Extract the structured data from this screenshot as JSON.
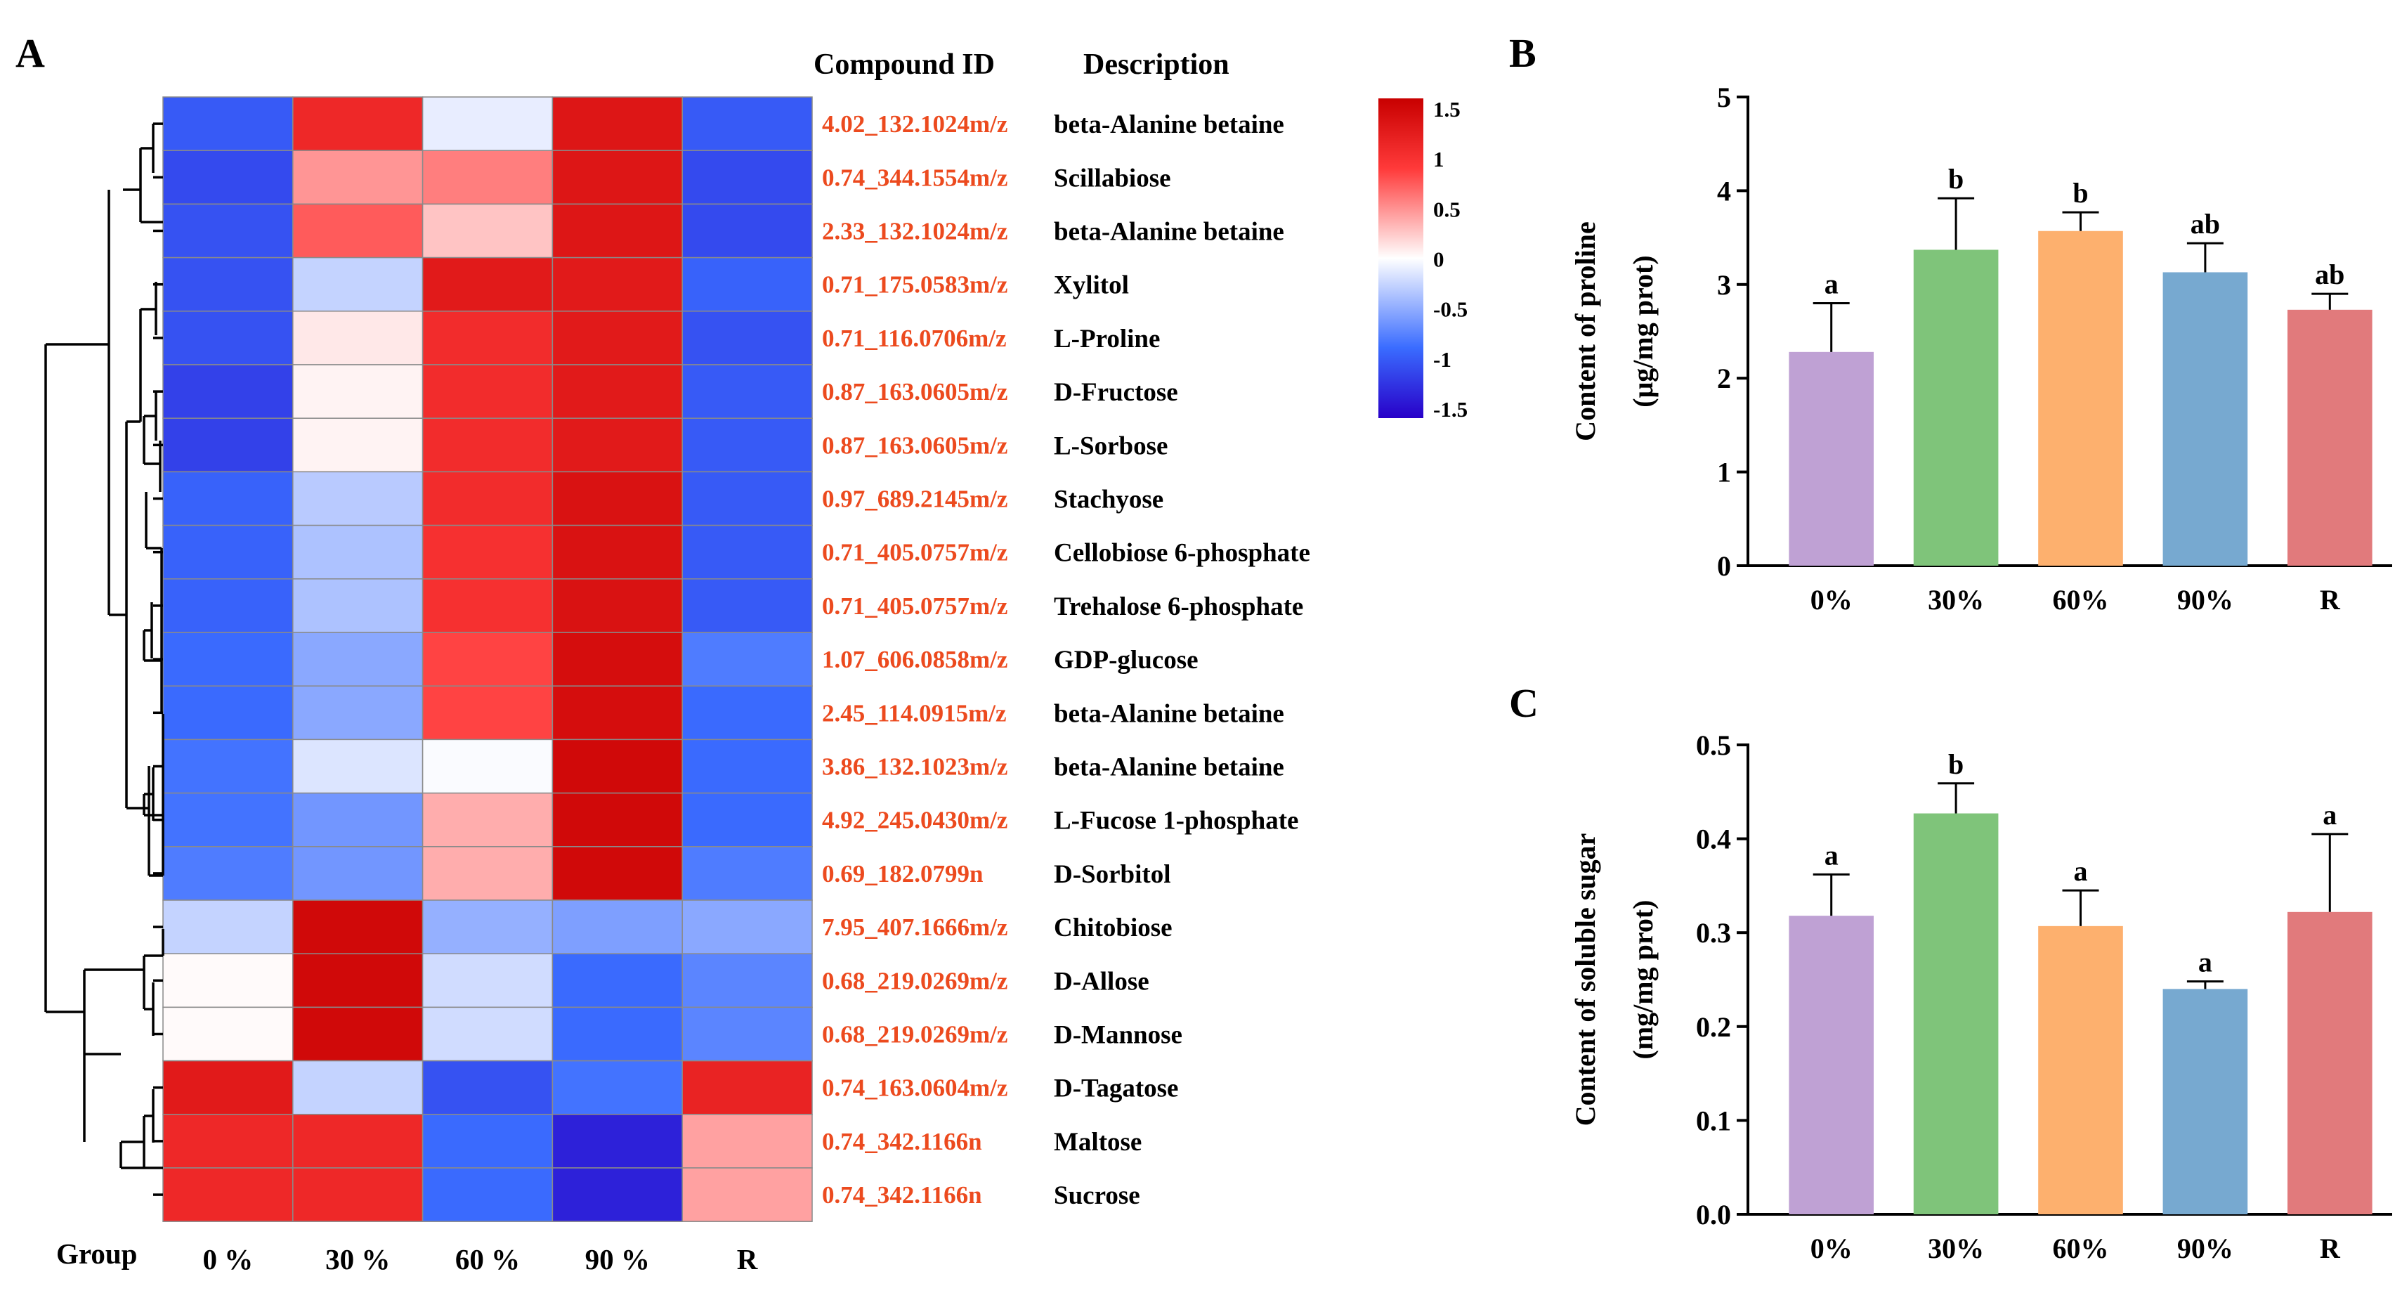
{
  "panels": {
    "a": "A",
    "b": "B",
    "c": "C"
  },
  "colors": {
    "low": "#2800c8",
    "mid": "#ffffff",
    "high": "#c80000",
    "bar_fills": [
      "#bfa1d4",
      "#7fc47a",
      "#fdb06e",
      "#77a9d0",
      "#e17a7c"
    ]
  },
  "chart_data": [
    {
      "type": "heatmap",
      "title": "",
      "header_id": "Compound ID",
      "header_desc": "Description",
      "group_label": "Group",
      "columns": [
        "0 %",
        "30 %",
        "60 %",
        "90 %",
        "R"
      ],
      "rows": [
        {
          "id": "4.02_132.1024m/z",
          "desc": "beta-Alanine betaine",
          "values": [
            -0.95,
            1.05,
            -0.1,
            1.25,
            -0.95
          ]
        },
        {
          "id": "0.74_344.1554m/z",
          "desc": "Scillabiose",
          "values": [
            -1.05,
            0.45,
            0.55,
            1.25,
            -1.05
          ]
        },
        {
          "id": "2.33_132.1024m/z",
          "desc": "beta-Alanine betaine",
          "values": [
            -1.0,
            0.7,
            0.25,
            1.25,
            -1.05
          ]
        },
        {
          "id": "0.71_175.0583m/z",
          "desc": "Xylitol",
          "values": [
            -1.0,
            -0.25,
            1.2,
            1.2,
            -0.9
          ]
        },
        {
          "id": "0.71_116.0706m/z",
          "desc": "L-Proline",
          "values": [
            -1.0,
            0.1,
            1.0,
            1.2,
            -1.0
          ]
        },
        {
          "id": "0.87_163.0605m/z",
          "desc": "D-Fructose",
          "values": [
            -1.1,
            0.05,
            1.0,
            1.2,
            -0.95
          ]
        },
        {
          "id": "0.87_163.0605m/z",
          "desc": "L-Sorbose",
          "values": [
            -1.1,
            0.05,
            1.0,
            1.2,
            -0.95
          ]
        },
        {
          "id": "0.97_689.2145m/z",
          "desc": "Stachyose",
          "values": [
            -0.9,
            -0.3,
            1.0,
            1.3,
            -0.95
          ]
        },
        {
          "id": "0.71_405.0757m/z",
          "desc": "Cellobiose 6-phosphate",
          "values": [
            -0.9,
            -0.35,
            0.95,
            1.3,
            -0.95
          ]
        },
        {
          "id": "0.71_405.0757m/z",
          "desc": "Trehalose 6-phosphate",
          "values": [
            -0.9,
            -0.35,
            0.95,
            1.3,
            -0.95
          ]
        },
        {
          "id": "1.07_606.0858m/z",
          "desc": "GDP-glucose",
          "values": [
            -0.85,
            -0.5,
            0.8,
            1.35,
            -0.75
          ]
        },
        {
          "id": "2.45_114.0915m/z",
          "desc": "beta-Alanine betaine",
          "values": [
            -0.85,
            -0.5,
            0.8,
            1.35,
            -0.85
          ]
        },
        {
          "id": "3.86_132.1023m/z",
          "desc": "beta-Alanine betaine",
          "values": [
            -0.8,
            -0.15,
            -0.02,
            1.4,
            -0.85
          ]
        },
        {
          "id": "4.92_245.0430m/z",
          "desc": "L-Fucose 1-phosphate",
          "values": [
            -0.8,
            -0.6,
            0.35,
            1.4,
            -0.85
          ]
        },
        {
          "id": "0.69_182.0799n",
          "desc": "D-Sorbitol",
          "values": [
            -0.75,
            -0.6,
            0.35,
            1.4,
            -0.75
          ]
        },
        {
          "id": "7.95_407.1666m/z",
          "desc": "Chitobiose",
          "values": [
            -0.25,
            1.4,
            -0.45,
            -0.55,
            -0.5
          ]
        },
        {
          "id": "0.68_219.0269m/z",
          "desc": "D-Allose",
          "values": [
            0.02,
            1.4,
            -0.2,
            -0.85,
            -0.7
          ]
        },
        {
          "id": "0.68_219.0269m/z",
          "desc": "D-Mannose",
          "values": [
            0.02,
            1.4,
            -0.2,
            -0.85,
            -0.7
          ]
        },
        {
          "id": "0.74_163.0604m/z",
          "desc": "D-Tagatose",
          "values": [
            1.2,
            -0.25,
            -1.0,
            -0.8,
            1.1
          ]
        },
        {
          "id": "0.74_342.1166n",
          "desc": "Maltose",
          "values": [
            1.05,
            1.05,
            -0.85,
            -1.3,
            0.4
          ]
        },
        {
          "id": "0.74_342.1166n",
          "desc": "Sucrose",
          "values": [
            1.05,
            1.05,
            -0.85,
            -1.3,
            0.4
          ]
        }
      ],
      "colorbar": {
        "range": [
          -1.5,
          1.5
        ],
        "ticks": [
          "1.5",
          "1",
          "0.5",
          "0",
          "-0.5",
          "-1",
          "-1.5"
        ]
      }
    },
    {
      "type": "bar",
      "categories": [
        "0%",
        "30%",
        "60%",
        "90%",
        "R"
      ],
      "values": [
        2.28,
        3.37,
        3.57,
        3.13,
        2.73
      ],
      "errors": [
        0.52,
        0.55,
        0.2,
        0.31,
        0.17
      ],
      "letters": [
        "a",
        "b",
        "b",
        "ab",
        "ab"
      ],
      "ylabel_line1": "Content of proline",
      "ylabel_line2": "(μg/mg prot)",
      "ylim": [
        0,
        5
      ],
      "yticks": [
        "0",
        "1",
        "2",
        "3",
        "4",
        "5"
      ]
    },
    {
      "type": "bar",
      "categories": [
        "0%",
        "30%",
        "60%",
        "90%",
        "R"
      ],
      "values": [
        0.318,
        0.427,
        0.307,
        0.24,
        0.322
      ],
      "errors": [
        0.044,
        0.032,
        0.038,
        0.008,
        0.083
      ],
      "letters": [
        "a",
        "b",
        "a",
        "a",
        "a"
      ],
      "ylabel_line1": "Content of soluble sugar",
      "ylabel_line2": "(mg/mg prot)",
      "ylim": [
        0,
        0.5
      ],
      "yticks": [
        "0.0",
        "0.1",
        "0.2",
        "0.3",
        "0.4",
        "0.5"
      ]
    }
  ]
}
